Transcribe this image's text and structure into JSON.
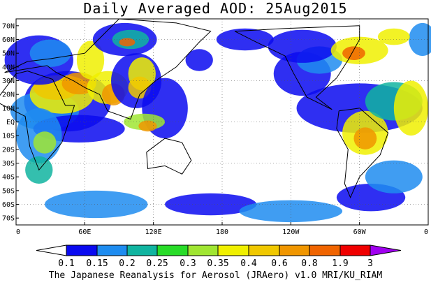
{
  "title": "Daily Averaged AOD: 25Aug2015",
  "caption": "The Japanese Reanalysis for Aerosol (JRAero) v1.0 MRI/KU_RIAM",
  "map": {
    "lat_ticks": [
      "70N",
      "60N",
      "50N",
      "40N",
      "30N",
      "20N",
      "10N",
      "EQ",
      "10S",
      "20S",
      "30S",
      "40S",
      "50S",
      "60S",
      "70S"
    ],
    "lon_ticks": [
      "0",
      "60E",
      "120E",
      "180",
      "120W",
      "60W",
      "0"
    ],
    "lat_range": [
      -75,
      75
    ],
    "lon_range": [
      0,
      360
    ]
  },
  "colorbar": {
    "labels": [
      "0.1",
      "0.15",
      "0.2",
      "0.25",
      "0.3",
      "0.35",
      "0.4",
      "0.6",
      "0.8",
      "1.9",
      "3"
    ],
    "colors": [
      "#ffffff",
      "#0a0af0",
      "#1e8cf0",
      "#10b4a0",
      "#28dc28",
      "#a0e632",
      "#f0f000",
      "#f0c800",
      "#f09600",
      "#f06400",
      "#f00000",
      "#a000f0"
    ]
  }
}
